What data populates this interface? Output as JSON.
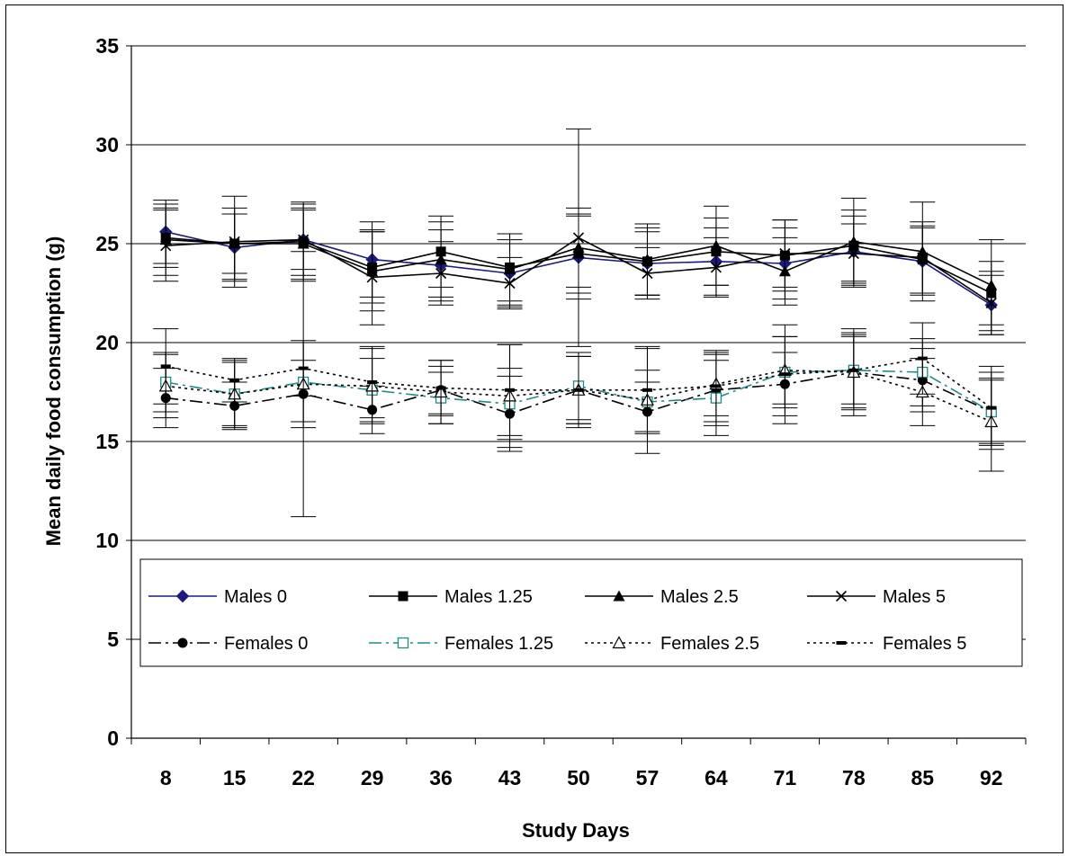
{
  "chart_data": {
    "type": "line",
    "title": "",
    "xlabel": "Study Days",
    "ylabel": "Mean daily food consumption (g)",
    "ylim": [
      0,
      35
    ],
    "yticks": [
      0,
      5,
      10,
      15,
      20,
      25,
      30,
      35
    ],
    "x": [
      8,
      15,
      22,
      29,
      36,
      43,
      50,
      57,
      64,
      71,
      78,
      85,
      92
    ],
    "grid": "horizontal",
    "legend_position": "inside-bottom",
    "series": [
      {
        "name": "Males 0",
        "color": "#1a1a80",
        "dash": "",
        "marker": "diamond",
        "values": [
          25.6,
          24.8,
          25.2,
          24.2,
          23.9,
          23.5,
          24.3,
          24.0,
          24.1,
          24.0,
          24.6,
          24.1,
          21.9
        ],
        "errors": [
          1.6,
          1.7,
          1.8,
          1.9,
          1.8,
          1.7,
          2.1,
          1.6,
          1.7,
          1.8,
          1.8,
          1.7,
          1.5
        ]
      },
      {
        "name": "Males 1.25",
        "color": "#000000",
        "dash": "",
        "marker": "square",
        "values": [
          25.3,
          25.0,
          25.1,
          23.8,
          24.6,
          23.8,
          24.5,
          24.1,
          24.6,
          24.4,
          24.9,
          24.2,
          22.5
        ],
        "errors": [
          1.5,
          1.5,
          2.0,
          1.8,
          1.8,
          1.7,
          2.0,
          1.7,
          1.7,
          1.8,
          1.8,
          1.7,
          1.6
        ]
      },
      {
        "name": "Males 2.5",
        "color": "#000000",
        "dash": "",
        "marker": "triangle",
        "values": [
          25.2,
          25.0,
          25.0,
          23.6,
          24.2,
          23.7,
          24.8,
          24.2,
          24.9,
          23.6,
          25.1,
          24.6,
          22.9
        ],
        "errors": [
          1.8,
          1.8,
          1.8,
          2.0,
          1.9,
          1.8,
          2.0,
          1.8,
          2.0,
          1.7,
          2.2,
          2.5,
          2.3
        ]
      },
      {
        "name": "Males 5",
        "color": "#000000",
        "dash": "",
        "marker": "x",
        "values": [
          24.9,
          25.1,
          25.2,
          23.3,
          23.5,
          23.0,
          25.3,
          23.5,
          23.8,
          24.5,
          24.5,
          24.3,
          22.0
        ],
        "errors": [
          1.8,
          2.3,
          1.5,
          2.4,
          1.6,
          1.3,
          5.5,
          1.3,
          1.5,
          1.7,
          1.5,
          1.8,
          1.6
        ]
      },
      {
        "name": "Females 0",
        "color": "#000000",
        "dash": "14,5,3,5",
        "marker": "circle",
        "values": [
          17.2,
          16.8,
          17.4,
          16.6,
          17.6,
          16.4,
          17.6,
          16.5,
          17.6,
          17.9,
          18.5,
          18.1,
          16.5
        ],
        "errors": [
          1.5,
          1.2,
          1.7,
          1.2,
          1.2,
          1.9,
          1.7,
          1.5,
          1.8,
          1.6,
          1.9,
          1.6,
          1.6
        ]
      },
      {
        "name": "Females 1.25",
        "color": "#1e8a8a",
        "dash": "14,5,3,5",
        "marker": "square-open",
        "values": [
          18.0,
          17.4,
          18.0,
          17.6,
          17.2,
          16.9,
          17.8,
          17.0,
          17.2,
          18.5,
          18.6,
          18.5,
          16.5
        ],
        "errors": [
          1.5,
          1.6,
          2.0,
          1.6,
          1.3,
          1.8,
          1.7,
          1.6,
          1.9,
          1.8,
          1.9,
          1.7,
          1.7
        ]
      },
      {
        "name": "Females 2.5",
        "color": "#000000",
        "dash": "3,4",
        "marker": "triangle-open",
        "values": [
          17.8,
          17.4,
          17.9,
          17.8,
          17.5,
          17.3,
          17.6,
          17.1,
          17.9,
          18.6,
          18.5,
          17.5,
          16.0
        ],
        "errors": [
          1.6,
          1.7,
          6.7,
          1.9,
          1.6,
          2.6,
          1.7,
          2.7,
          1.6,
          1.7,
          2.2,
          1.7,
          2.5
        ]
      },
      {
        "name": "Females 5",
        "color": "#000000",
        "dash": "3,4",
        "marker": "dash",
        "values": [
          18.8,
          18.1,
          18.7,
          18.0,
          17.7,
          17.6,
          17.6,
          17.6,
          17.8,
          18.4,
          18.6,
          19.2,
          16.7
        ],
        "errors": [
          1.9,
          1.1,
          1.4,
          1.8,
          1.4,
          2.3,
          1.9,
          2.1,
          1.8,
          2.5,
          1.7,
          1.8,
          2.1
        ]
      }
    ]
  }
}
